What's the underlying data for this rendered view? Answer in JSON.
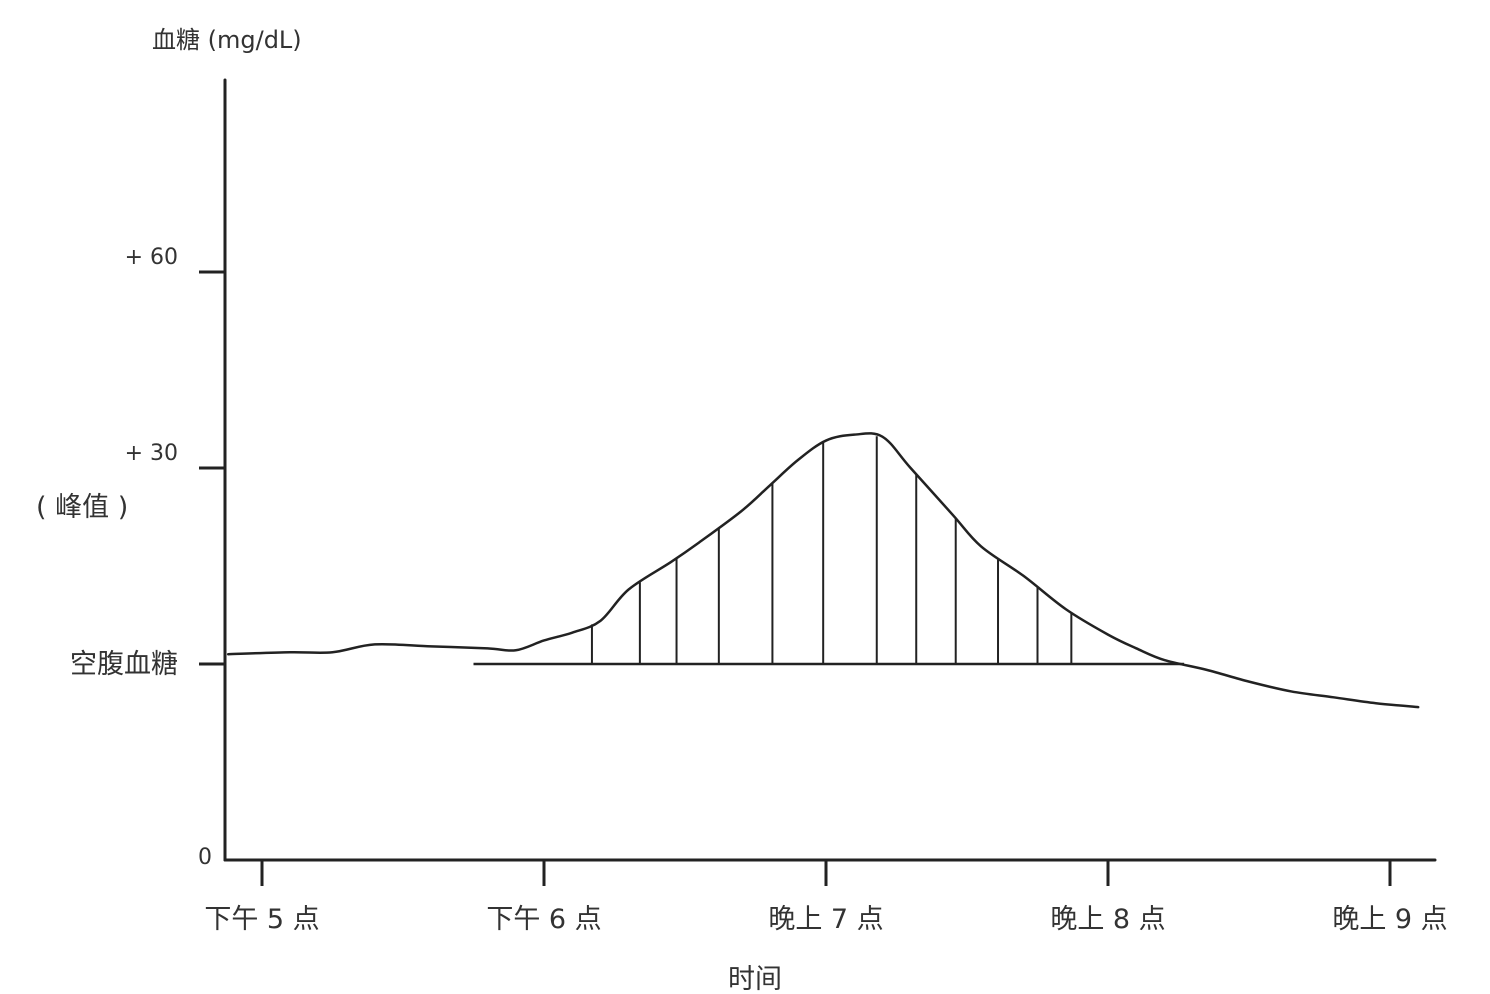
{
  "chart_data": {
    "type": "area",
    "ylabel": "血糖 (mg/dL)",
    "xlabel": "时间",
    "x_ticks": [
      "下午 5 点",
      "下午 6 点",
      "晚上 7 点",
      "晚上 8 点",
      "晚上 9 点"
    ],
    "y_ticks": [
      {
        "value": 0,
        "label": "0"
      },
      {
        "value": 1,
        "label": "空腹血糖"
      },
      {
        "value": 2,
        "label": "+ 30"
      },
      {
        "value": 3,
        "label": "+ 60"
      }
    ],
    "annotations": [
      "( 峰值 )"
    ],
    "ylim": [
      0,
      3.9
    ],
    "xlim": [
      -0.12,
      4.15
    ],
    "baseline": 1,
    "grid": false,
    "series": [
      {
        "x": [
          -0.12,
          0.1,
          0.25,
          0.4,
          0.6,
          0.8,
          0.9,
          1.0,
          1.1,
          1.2,
          1.3,
          1.45,
          1.55,
          1.7,
          1.8,
          1.9,
          2.0,
          2.1,
          2.2,
          2.3,
          2.45,
          2.55,
          2.7,
          2.85,
          3.0,
          3.1,
          3.2,
          3.35,
          3.5,
          3.65,
          3.8,
          3.95,
          4.1
        ],
        "y": [
          1.05,
          1.06,
          1.06,
          1.1,
          1.09,
          1.08,
          1.07,
          1.12,
          1.16,
          1.22,
          1.38,
          1.52,
          1.62,
          1.78,
          1.91,
          2.04,
          2.14,
          2.17,
          2.16,
          2.0,
          1.76,
          1.6,
          1.45,
          1.28,
          1.15,
          1.08,
          1.02,
          0.97,
          0.91,
          0.86,
          0.83,
          0.8,
          0.78
        ],
        "shaded_above_baseline": true
      }
    ]
  }
}
